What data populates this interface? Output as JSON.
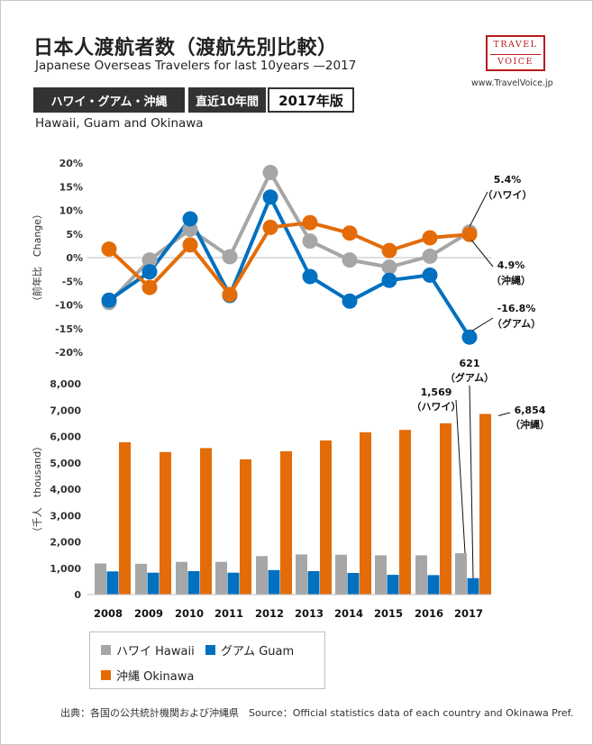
{
  "header": {
    "title": "日本人渡航者数（渡航先別比較）",
    "subtitle": "Japanese Overseas Travelers for last 10years —2017",
    "badge_region": "ハワイ・グアム・沖縄",
    "badge_period": "直近10年間",
    "badge_year": "2017年版",
    "region_en": "Hawaii, Guam and Okinawa"
  },
  "logo": {
    "line1": "TRAVEL",
    "line2": "VOICE",
    "site": "www.TravelVoice.jp"
  },
  "colors": {
    "hawaii": "#a6a6a6",
    "guam": "#0070c0",
    "okinawa": "#e36c09"
  },
  "legend": {
    "hawaii": "ハワイ Hawaii",
    "guam": "グアム Guam",
    "okinawa": "沖縄 Okinawa"
  },
  "footer": "出典：各国の公共統計機関および沖縄県　Source：Official statistics data of each country and Okinawa Pref.",
  "chart_data": [
    {
      "type": "line",
      "ylabel": "（前年比　Change）",
      "ylim": [
        -20,
        20
      ],
      "yticks": [
        "20%",
        "15%",
        "10%",
        "5%",
        "0%",
        "-5%",
        "-10%",
        "-15%",
        "-20%"
      ],
      "x": [
        "2008",
        "2009",
        "2010",
        "2011",
        "2012",
        "2013",
        "2014",
        "2015",
        "2016",
        "2017"
      ],
      "series": [
        {
          "name": "ハワイ Hawaii",
          "values": [
            -9.5,
            -0.5,
            6.0,
            0.2,
            18.0,
            3.5,
            -0.5,
            -2.0,
            0.3,
            5.4
          ]
        },
        {
          "name": "グアム Guam",
          "values": [
            -9.0,
            -3.0,
            8.2,
            -8.0,
            12.8,
            -4.0,
            -9.2,
            -4.8,
            -3.7,
            -16.8
          ]
        },
        {
          "name": "沖縄 Okinawa",
          "values": [
            1.8,
            -6.3,
            2.7,
            -7.8,
            6.4,
            7.4,
            5.2,
            1.5,
            4.2,
            4.9
          ]
        }
      ],
      "annotations": [
        {
          "value": "5.4%",
          "label": "（ハワイ）"
        },
        {
          "value": "4.9%",
          "label": "（沖縄）"
        },
        {
          "value": "-16.8%",
          "label": "（グアム）"
        }
      ]
    },
    {
      "type": "bar",
      "ylabel": "（千人　thousand）",
      "ylim": [
        0,
        8000
      ],
      "yticks": [
        "8,000",
        "7,000",
        "6,000",
        "5,000",
        "4,000",
        "3,000",
        "2,000",
        "1,000",
        "0"
      ],
      "categories": [
        "2008",
        "2009",
        "2010",
        "2011",
        "2012",
        "2013",
        "2014",
        "2015",
        "2016",
        "2017"
      ],
      "series": [
        {
          "name": "ハワイ Hawaii",
          "values": [
            1180,
            1170,
            1240,
            1240,
            1460,
            1520,
            1510,
            1490,
            1490,
            1569
          ]
        },
        {
          "name": "グアム Guam",
          "values": [
            880,
            830,
            890,
            830,
            930,
            890,
            820,
            750,
            740,
            621
          ]
        },
        {
          "name": "沖縄 Okinawa",
          "values": [
            5780,
            5410,
            5560,
            5130,
            5440,
            5850,
            6160,
            6250,
            6500,
            6854
          ]
        }
      ],
      "annotations": [
        {
          "value": "1,569",
          "label": "（ハワイ）"
        },
        {
          "value": "621",
          "label": "（グアム）"
        },
        {
          "value": "6,854",
          "label": "（沖縄）"
        }
      ]
    }
  ]
}
